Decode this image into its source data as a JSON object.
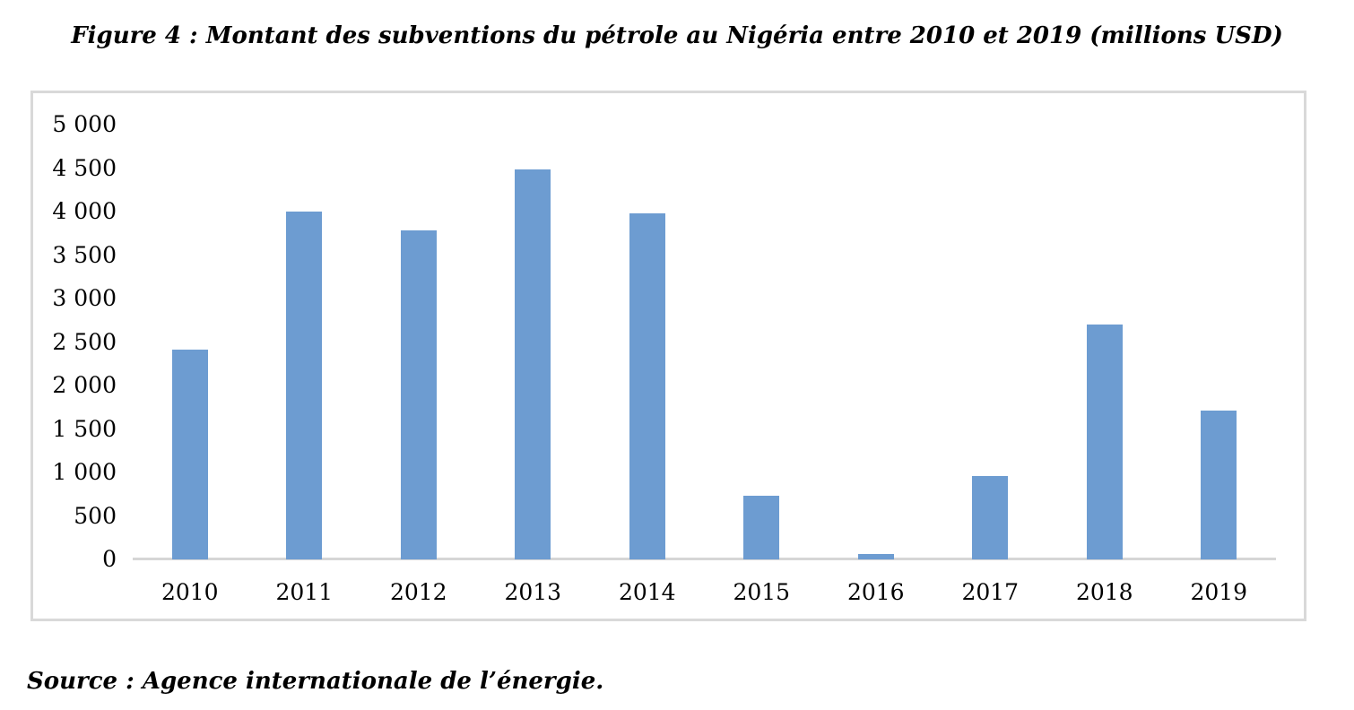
{
  "figure": {
    "title": "Figure 4 : Montant des subventions du pétrole au Nigéria entre 2010 et 2019 (millions USD)",
    "source_note": "Source : Agence internationale de l’énergie."
  },
  "chart_data": {
    "type": "bar",
    "title": "Montant des subventions du pétrole au Nigéria entre 2010 et 2019 (millions USD)",
    "categories": [
      "2010",
      "2011",
      "2012",
      "2013",
      "2014",
      "2015",
      "2016",
      "2017",
      "2018",
      "2019"
    ],
    "values": [
      2410,
      4000,
      3780,
      4490,
      3980,
      730,
      60,
      960,
      2700,
      1710
    ],
    "xlabel": "",
    "ylabel": "",
    "ylim": [
      0,
      5000
    ],
    "ytick_interval": 500,
    "ytick_labels": [
      "5 000",
      "4 500",
      "4 000",
      "3 500",
      "3 000",
      "2 500",
      "2 000",
      "1 500",
      "1 000",
      "500",
      "0"
    ],
    "legend_position": "none",
    "grid": false,
    "colors": {
      "bar_fill": "#6d9cd1",
      "axis_line": "#d6d6d6",
      "frame_border": "#d9d9d9",
      "text": "#000000"
    }
  }
}
